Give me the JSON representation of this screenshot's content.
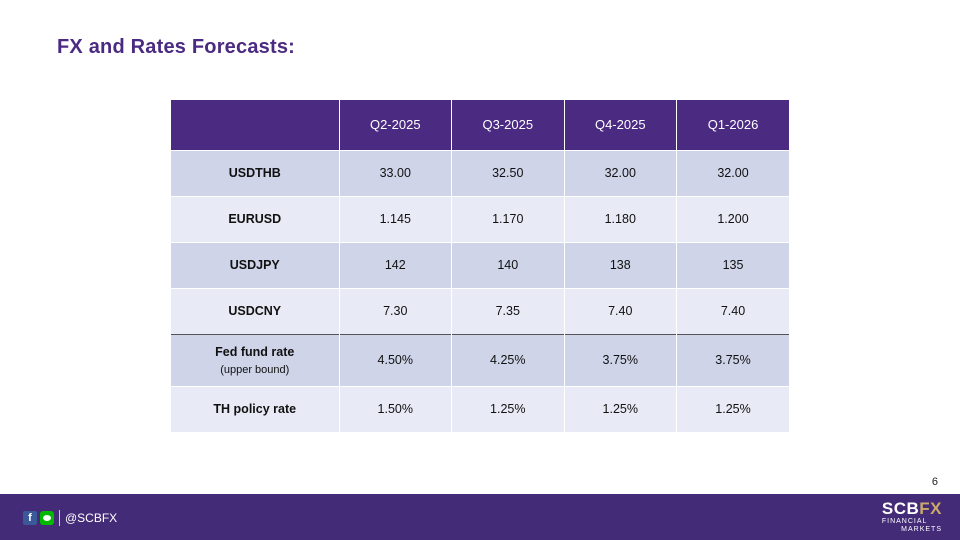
{
  "title": "FX and Rates Forecasts:",
  "table": {
    "headers": [
      "",
      "Q2-2025",
      "Q3-2025",
      "Q4-2025",
      "Q1-2026"
    ],
    "rows": [
      {
        "label": "USDTHB",
        "sub": "",
        "values": [
          "33.00",
          "32.50",
          "32.00",
          "32.00"
        ]
      },
      {
        "label": "EURUSD",
        "sub": "",
        "values": [
          "1.145",
          "1.170",
          "1.180",
          "1.200"
        ]
      },
      {
        "label": "USDJPY",
        "sub": "",
        "values": [
          "142",
          "140",
          "138",
          "135"
        ]
      },
      {
        "label": "USDCNY",
        "sub": "",
        "values": [
          "7.30",
          "7.35",
          "7.40",
          "7.40"
        ]
      },
      {
        "label": "Fed fund rate",
        "sub": "(upper bound)",
        "values": [
          "4.50%",
          "4.25%",
          "3.75%",
          "3.75%"
        ]
      },
      {
        "label": "TH policy rate",
        "sub": "",
        "values": [
          "1.50%",
          "1.25%",
          "1.25%",
          "1.25%"
        ]
      }
    ]
  },
  "page_number": "6",
  "footer": {
    "handle": "@SCBFX",
    "facebook_glyph": "f",
    "logo_scb": "SCB",
    "logo_fx": "FX",
    "logo_line1": "FINANCIAL",
    "logo_line2": "MARKETS"
  },
  "colors": {
    "brand_purple": "#4b2a82",
    "footer_purple": "#442b78",
    "row_dark": "#cfd4e9",
    "row_light": "#e8ebf5",
    "logo_gold": "#c9a96b"
  },
  "icons": [
    "facebook-icon",
    "line-icon"
  ]
}
